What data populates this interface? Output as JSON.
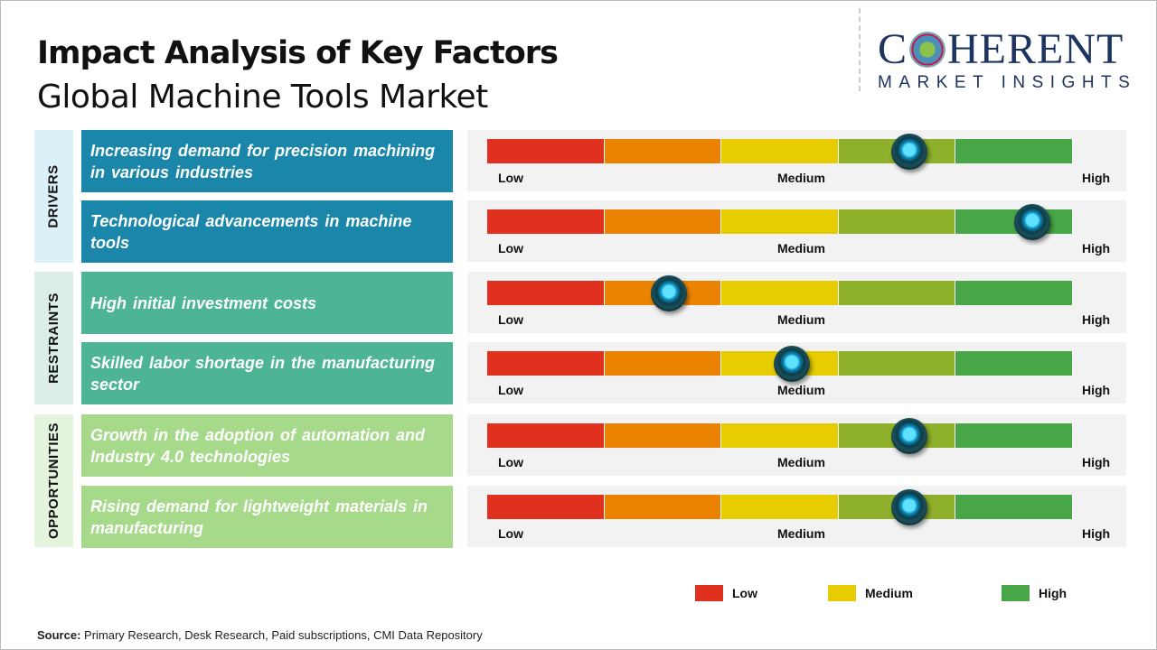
{
  "header": {
    "title": "Impact Analysis of Key Factors",
    "subtitle": "Global Machine Tools Market"
  },
  "logo": {
    "line1_a": "C",
    "line1_b": "HERENT",
    "line2": "MARKET INSIGHTS"
  },
  "colors": {
    "drivers": "#1a86aa",
    "drivers_side": "#dcf0f8",
    "restraints": "#4db596",
    "restraints_side": "#dbefe6",
    "opportunities": "#a6d98a",
    "opportunities_side": "#e5f4dc",
    "segments": [
      "#e0301e",
      "#ec8300",
      "#e6cc00",
      "#8fb02a",
      "#47a645"
    ]
  },
  "categories": [
    {
      "label": "DRIVERS"
    },
    {
      "label": "RESTRAINTS"
    },
    {
      "label": "OPPORTUNITIES"
    }
  ],
  "scale_labels": {
    "low": "Low",
    "medium": "Medium",
    "high": "High"
  },
  "chart_data": {
    "type": "gauge",
    "title": "Impact Analysis of Key Factors",
    "scale": [
      0,
      1
    ],
    "factors": [
      {
        "category": "DRIVERS",
        "text": "Increasing demand for precision machining in various industries",
        "impact": 0.72
      },
      {
        "category": "DRIVERS",
        "text": "Technological advancements in machine tools",
        "impact": 0.93
      },
      {
        "category": "RESTRAINTS",
        "text": "High initial investment costs",
        "impact": 0.31
      },
      {
        "category": "RESTRAINTS",
        "text": "Skilled labor shortage in the manufacturing sector",
        "impact": 0.52
      },
      {
        "category": "OPPORTUNITIES",
        "text": "Growth in the adoption of automation and Industry 4.0 technologies",
        "impact": 0.72
      },
      {
        "category": "OPPORTUNITIES",
        "text": "Rising demand for lightweight materials in manufacturing",
        "impact": 0.72
      }
    ],
    "legend": [
      {
        "label": "Low",
        "color": "#e0301e"
      },
      {
        "label": "Medium",
        "color": "#e6cc00"
      },
      {
        "label": "High",
        "color": "#47a645"
      }
    ]
  },
  "source": {
    "label": "Source:",
    "text": " Primary Research, Desk Research, Paid subscriptions, CMI Data Repository"
  }
}
